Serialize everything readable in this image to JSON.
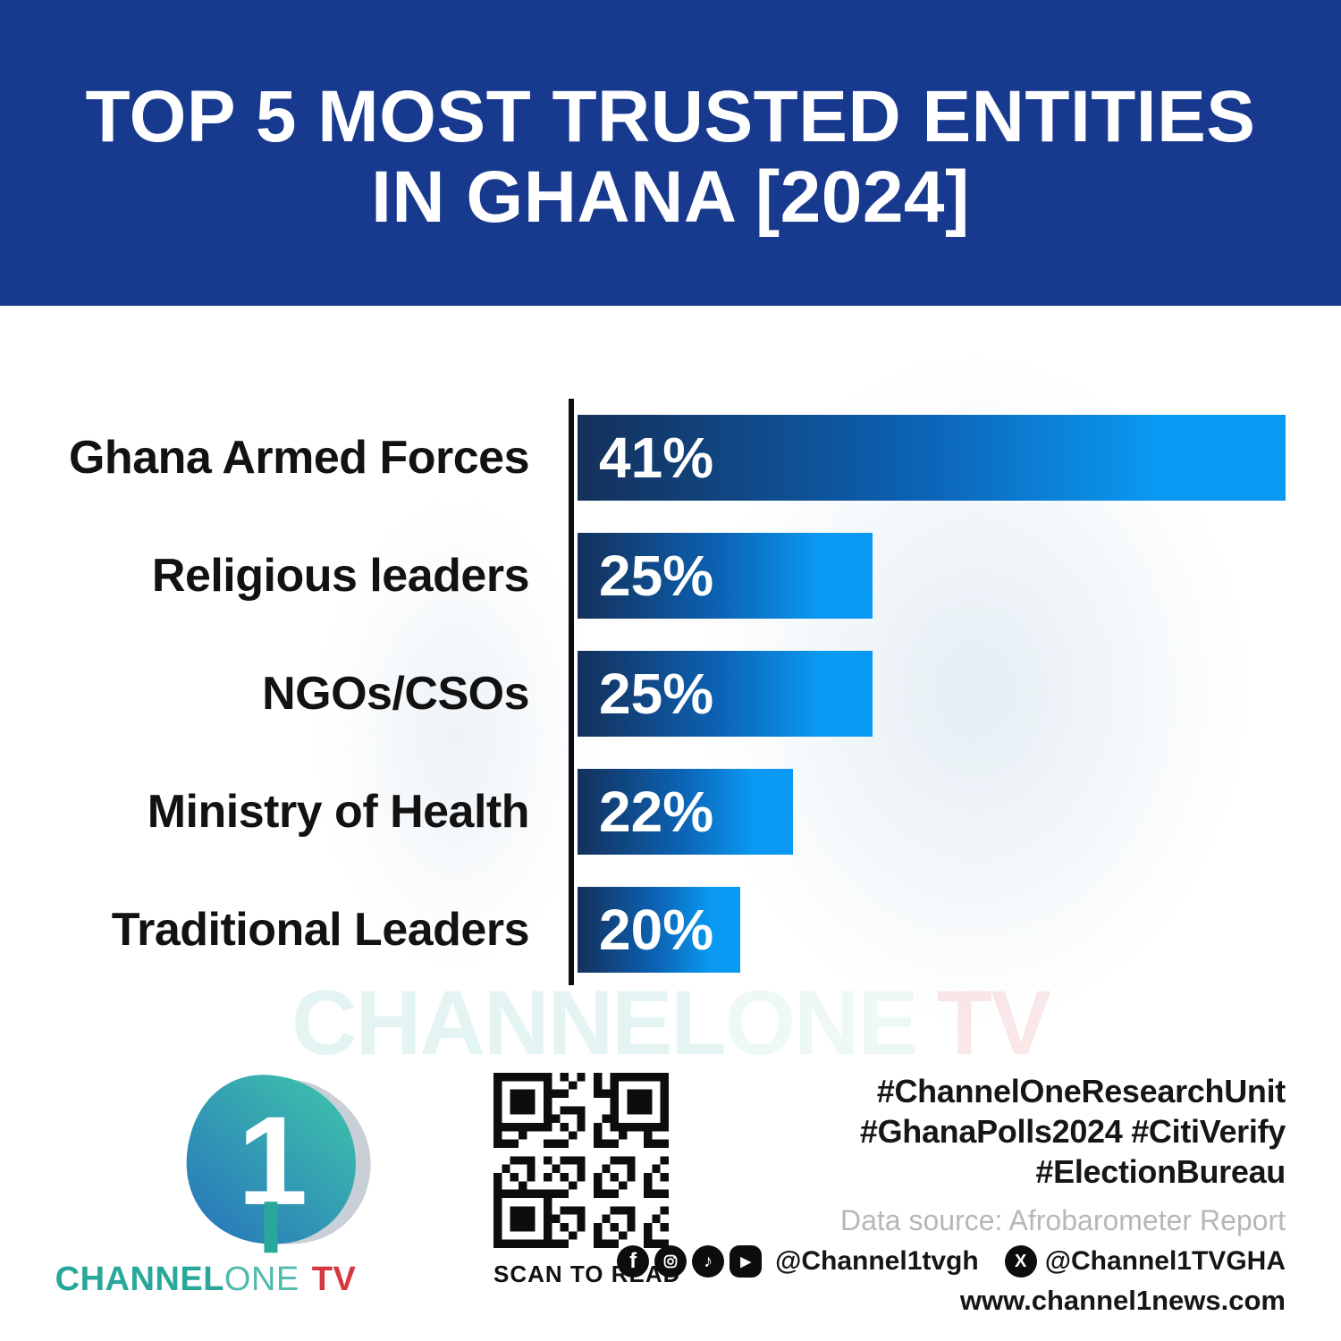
{
  "header": {
    "bg_color": "#17398E",
    "title_line1": "TOP 5 MOST TRUSTED ENTITIES",
    "title_line2": "IN GHANA [2024]"
  },
  "chart_data": {
    "type": "bar",
    "orientation": "horizontal",
    "title": "TOP 5 MOST TRUSTED ENTITIES IN GHANA [2024]",
    "categories": [
      "Ghana Armed Forces",
      "Religious leaders",
      "NGOs/CSOs",
      "Ministry of Health",
      "Traditional Leaders"
    ],
    "values": [
      41,
      25,
      25,
      22,
      20
    ],
    "unit": "%",
    "value_labels": [
      "41%",
      "25%",
      "25%",
      "22%",
      "20%"
    ],
    "value_label_position": "inside-left",
    "bar_length_fraction_of_max": [
      1.0,
      0.417,
      0.417,
      0.304,
      0.23
    ],
    "bar_gradient": [
      "#14305A",
      "#0C62B4",
      "#0A99F2"
    ],
    "axis_color": "#0C0C12",
    "label_color": "#121212",
    "grid": false,
    "legend": false
  },
  "watermark": {
    "part1": "CHANNEL",
    "part2": "ONE",
    "part3": "TV"
  },
  "footer": {
    "logo": {
      "mark": "1",
      "word1": "CHANNEL",
      "word2": "ONE",
      "word3": "TV",
      "teal": "#2AA79B",
      "red": "#D4373E"
    },
    "qr_caption": "SCAN TO READ",
    "hashtags": [
      "#ChannelOneResearchUnit",
      "#GhanaPolls2024 #CitiVerify",
      "#ElectionBureau"
    ],
    "data_source": "Data source: Afrobarometer Report",
    "handle_main": "@Channel1tvgh",
    "handle_x": "@Channel1TVGHA",
    "website": "www.channel1news.com",
    "social_icons": [
      "facebook-icon",
      "instagram-icon",
      "tiktok-icon",
      "youtube-icon"
    ],
    "icon_glyphs": {
      "facebook-icon": "f",
      "tiktok-icon": "♪",
      "youtube-icon": "▶",
      "x-icon": "X"
    }
  }
}
